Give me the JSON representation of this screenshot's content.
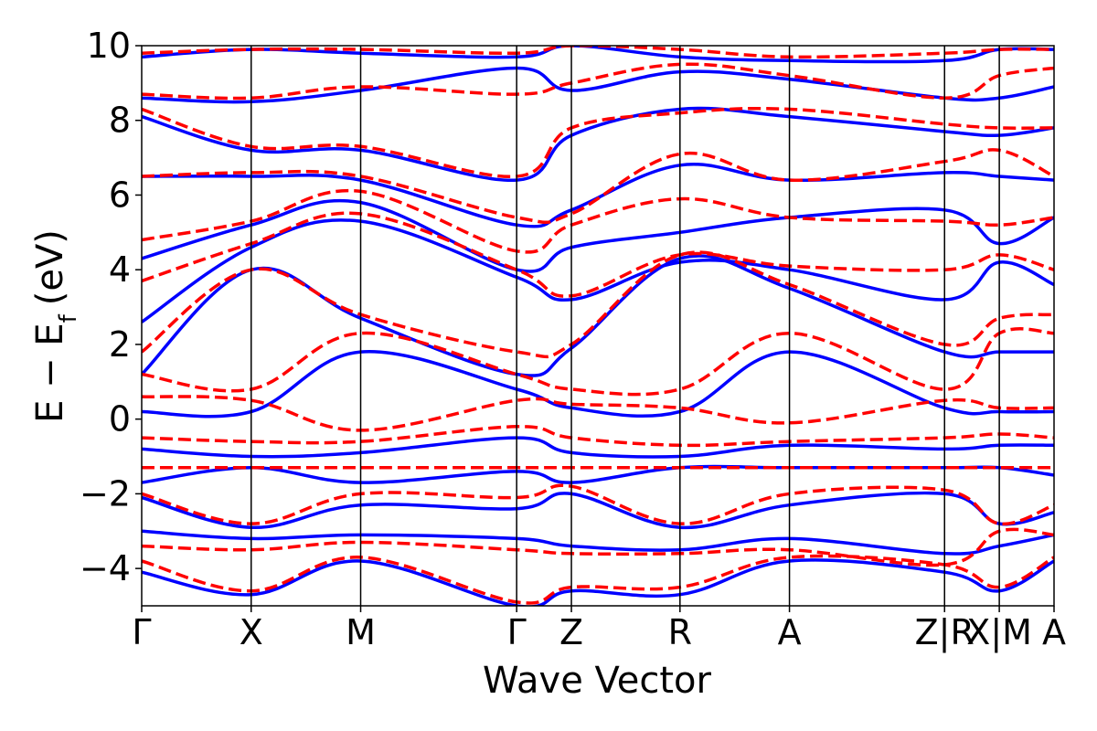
{
  "chart_data": {
    "type": "line",
    "xlabel": "Wave Vector",
    "ylabel_main": "E − E",
    "ylabel_sub": "f",
    "ylabel_unit": "(eV)",
    "ylim": [
      -5,
      10
    ],
    "yticks": [
      -4,
      -2,
      0,
      2,
      4,
      6,
      8,
      10
    ],
    "ytick_labels": [
      "−4",
      "−2",
      "0",
      "2",
      "4",
      "6",
      "8",
      "10"
    ],
    "xlim": [
      0,
      1
    ],
    "kpoints": [
      {
        "label": "Γ",
        "x": 0.0
      },
      {
        "label": "X",
        "x": 0.12
      },
      {
        "label": "M",
        "x": 0.24
      },
      {
        "label": "Γ",
        "x": 0.411
      },
      {
        "label": "Z",
        "x": 0.471
      },
      {
        "label": "R",
        "x": 0.59
      },
      {
        "label": "A",
        "x": 0.71
      },
      {
        "label": "Z|R",
        "x": 0.88
      },
      {
        "label": "X|M",
        "x": 0.94
      },
      {
        "label": "A",
        "x": 1.0
      }
    ],
    "colors": {
      "solid": "#0000ff",
      "dashed": "#ff0000"
    },
    "series": [
      {
        "style": "solid",
        "x": [
          0,
          0.12,
          0.24,
          0.411,
          0.471,
          0.59,
          0.71,
          0.88,
          0.94,
          1.0
        ],
        "y": [
          -4.1,
          -4.7,
          -3.8,
          -5.0,
          -4.6,
          -4.7,
          -3.8,
          -4.1,
          -4.6,
          -3.8
        ]
      },
      {
        "style": "dashed",
        "x": [
          0,
          0.12,
          0.24,
          0.411,
          0.471,
          0.59,
          0.71,
          0.88,
          0.94,
          1.0
        ],
        "y": [
          -3.8,
          -4.6,
          -3.7,
          -4.9,
          -4.5,
          -4.5,
          -3.7,
          -3.9,
          -4.5,
          -3.7
        ]
      },
      {
        "style": "solid",
        "x": [
          0,
          0.12,
          0.24,
          0.411,
          0.471,
          0.59,
          0.71,
          0.88,
          0.94,
          1.0
        ],
        "y": [
          -3.0,
          -3.2,
          -3.1,
          -3.2,
          -3.4,
          -3.5,
          -3.2,
          -3.6,
          -3.4,
          -3.1
        ]
      },
      {
        "style": "dashed",
        "x": [
          0,
          0.12,
          0.24,
          0.411,
          0.471,
          0.59,
          0.71,
          0.88,
          0.94,
          1.0
        ],
        "y": [
          -3.4,
          -3.5,
          -3.3,
          -3.5,
          -3.6,
          -3.6,
          -3.5,
          -3.9,
          -3.0,
          -3.1
        ]
      },
      {
        "style": "solid",
        "x": [
          0,
          0.12,
          0.24,
          0.411,
          0.471,
          0.59,
          0.71,
          0.88,
          0.94,
          1.0
        ],
        "y": [
          -2.1,
          -2.9,
          -2.3,
          -2.4,
          -2.0,
          -2.9,
          -2.3,
          -2.0,
          -2.8,
          -2.5
        ]
      },
      {
        "style": "dashed",
        "x": [
          0,
          0.12,
          0.24,
          0.411,
          0.471,
          0.59,
          0.71,
          0.88,
          0.94,
          1.0
        ],
        "y": [
          -2.0,
          -2.8,
          -2.0,
          -2.1,
          -1.8,
          -2.8,
          -2.0,
          -1.9,
          -2.8,
          -2.3
        ]
      },
      {
        "style": "solid",
        "x": [
          0,
          0.12,
          0.24,
          0.411,
          0.471,
          0.59,
          0.71,
          0.88,
          0.94,
          1.0
        ],
        "y": [
          -1.7,
          -1.3,
          -1.7,
          -1.4,
          -1.7,
          -1.3,
          -1.3,
          -1.3,
          -1.3,
          -1.5
        ]
      },
      {
        "style": "dashed",
        "x": [
          0,
          0.12,
          0.24,
          0.411,
          0.471,
          0.59,
          0.71,
          0.88,
          0.94,
          1.0
        ],
        "y": [
          -1.3,
          -1.3,
          -1.3,
          -1.3,
          -1.3,
          -1.3,
          -1.3,
          -1.3,
          -1.3,
          -1.3
        ]
      },
      {
        "style": "solid",
        "x": [
          0,
          0.12,
          0.24,
          0.411,
          0.471,
          0.59,
          0.71,
          0.88,
          0.94,
          1.0
        ],
        "y": [
          -0.8,
          -1.0,
          -0.9,
          -0.5,
          -0.9,
          -1.0,
          -0.7,
          -0.8,
          -0.7,
          -0.7
        ]
      },
      {
        "style": "dashed",
        "x": [
          0,
          0.12,
          0.24,
          0.411,
          0.471,
          0.59,
          0.71,
          0.88,
          0.94,
          1.0
        ],
        "y": [
          -0.5,
          -0.6,
          -0.6,
          -0.2,
          -0.5,
          -0.7,
          -0.6,
          -0.5,
          -0.4,
          -0.5
        ]
      },
      {
        "style": "solid",
        "x": [
          0,
          0.12,
          0.24,
          0.411,
          0.471,
          0.59,
          0.71,
          0.88,
          0.94,
          1.0
        ],
        "y": [
          0.2,
          0.2,
          1.8,
          0.8,
          0.3,
          0.2,
          1.8,
          0.3,
          0.2,
          0.2
        ]
      },
      {
        "style": "dashed",
        "x": [
          0,
          0.12,
          0.24,
          0.411,
          0.471,
          0.59,
          0.71,
          0.88,
          0.94,
          1.0
        ],
        "y": [
          0.6,
          0.5,
          -0.3,
          0.5,
          0.4,
          0.3,
          -0.1,
          0.5,
          0.3,
          0.3
        ]
      },
      {
        "style": "dashed",
        "x": [
          0,
          0.12,
          0.24,
          0.411,
          0.471,
          0.59,
          0.71,
          0.88,
          0.94,
          1.0
        ],
        "y": [
          1.2,
          0.8,
          2.3,
          1.2,
          0.8,
          0.8,
          2.3,
          0.8,
          2.3,
          2.3
        ]
      },
      {
        "style": "solid",
        "x": [
          0,
          0.12,
          0.24,
          0.411,
          0.471,
          0.59,
          0.71,
          0.88,
          0.94,
          1.0
        ],
        "y": [
          1.2,
          4.0,
          2.7,
          1.2,
          1.9,
          4.3,
          3.5,
          1.8,
          1.8,
          1.8
        ]
      },
      {
        "style": "dashed",
        "x": [
          0,
          0.12,
          0.24,
          0.411,
          0.471,
          0.59,
          0.71,
          0.88,
          0.94,
          1.0
        ],
        "y": [
          1.8,
          4.0,
          2.8,
          1.8,
          2.0,
          4.4,
          3.6,
          2.0,
          2.7,
          2.8
        ]
      },
      {
        "style": "solid",
        "x": [
          0,
          0.12,
          0.24,
          0.411,
          0.471,
          0.59,
          0.71,
          0.88,
          0.94,
          1.0
        ],
        "y": [
          2.6,
          4.6,
          5.3,
          3.8,
          3.2,
          4.2,
          4.0,
          3.2,
          4.2,
          3.6
        ]
      },
      {
        "style": "dashed",
        "x": [
          0,
          0.12,
          0.24,
          0.411,
          0.471,
          0.59,
          0.71,
          0.88,
          0.94,
          1.0
        ],
        "y": [
          3.7,
          4.7,
          5.5,
          4.0,
          3.3,
          4.4,
          4.1,
          4.0,
          4.4,
          4.0
        ]
      },
      {
        "style": "solid",
        "x": [
          0,
          0.12,
          0.24,
          0.411,
          0.471,
          0.59,
          0.71,
          0.88,
          0.94,
          1.0
        ],
        "y": [
          4.3,
          5.2,
          5.8,
          4.0,
          4.6,
          5.0,
          5.4,
          5.6,
          4.7,
          5.4
        ]
      },
      {
        "style": "dashed",
        "x": [
          0,
          0.12,
          0.24,
          0.411,
          0.471,
          0.59,
          0.71,
          0.88,
          0.94,
          1.0
        ],
        "y": [
          4.8,
          5.3,
          6.1,
          4.5,
          5.2,
          5.9,
          5.4,
          5.3,
          5.2,
          5.4
        ]
      },
      {
        "style": "solid",
        "x": [
          0,
          0.12,
          0.24,
          0.411,
          0.471,
          0.59,
          0.71,
          0.88,
          0.94,
          1.0
        ],
        "y": [
          6.5,
          6.5,
          6.4,
          5.2,
          5.6,
          6.8,
          6.4,
          6.6,
          6.5,
          6.4
        ]
      },
      {
        "style": "dashed",
        "x": [
          0,
          0.12,
          0.24,
          0.411,
          0.471,
          0.59,
          0.71,
          0.88,
          0.94,
          1.0
        ],
        "y": [
          6.5,
          6.6,
          6.5,
          5.4,
          5.5,
          7.1,
          6.4,
          6.9,
          7.2,
          6.5
        ]
      },
      {
        "style": "solid",
        "x": [
          0,
          0.12,
          0.24,
          0.411,
          0.471,
          0.59,
          0.71,
          0.88,
          0.94,
          1.0
        ],
        "y": [
          8.1,
          7.2,
          7.2,
          6.4,
          7.6,
          8.3,
          8.1,
          7.7,
          7.6,
          7.8
        ]
      },
      {
        "style": "dashed",
        "x": [
          0,
          0.12,
          0.24,
          0.411,
          0.471,
          0.59,
          0.71,
          0.88,
          0.94,
          1.0
        ],
        "y": [
          8.3,
          7.3,
          7.3,
          6.5,
          7.8,
          8.2,
          8.3,
          7.9,
          7.8,
          7.8
        ]
      },
      {
        "style": "solid",
        "x": [
          0,
          0.12,
          0.24,
          0.411,
          0.471,
          0.59,
          0.71,
          0.88,
          0.94,
          1.0
        ],
        "y": [
          8.6,
          8.5,
          8.8,
          9.4,
          8.8,
          9.3,
          9.1,
          8.6,
          8.6,
          8.9
        ]
      },
      {
        "style": "dashed",
        "x": [
          0,
          0.12,
          0.24,
          0.411,
          0.471,
          0.59,
          0.71,
          0.88,
          0.94,
          1.0
        ],
        "y": [
          8.7,
          8.6,
          8.9,
          8.7,
          9.0,
          9.5,
          9.2,
          8.6,
          9.2,
          9.4
        ]
      },
      {
        "style": "solid",
        "x": [
          0,
          0.12,
          0.24,
          0.411,
          0.471,
          0.59,
          0.71,
          0.88,
          0.94,
          1.0
        ],
        "y": [
          9.7,
          9.9,
          9.8,
          9.7,
          10.0,
          9.7,
          9.6,
          9.6,
          9.9,
          9.9
        ]
      },
      {
        "style": "dashed",
        "x": [
          0,
          0.12,
          0.24,
          0.411,
          0.471,
          0.59,
          0.71,
          0.88,
          0.94,
          1.0
        ],
        "y": [
          9.8,
          9.9,
          9.9,
          9.8,
          10.0,
          9.9,
          9.7,
          9.8,
          9.9,
          9.9
        ]
      }
    ]
  }
}
